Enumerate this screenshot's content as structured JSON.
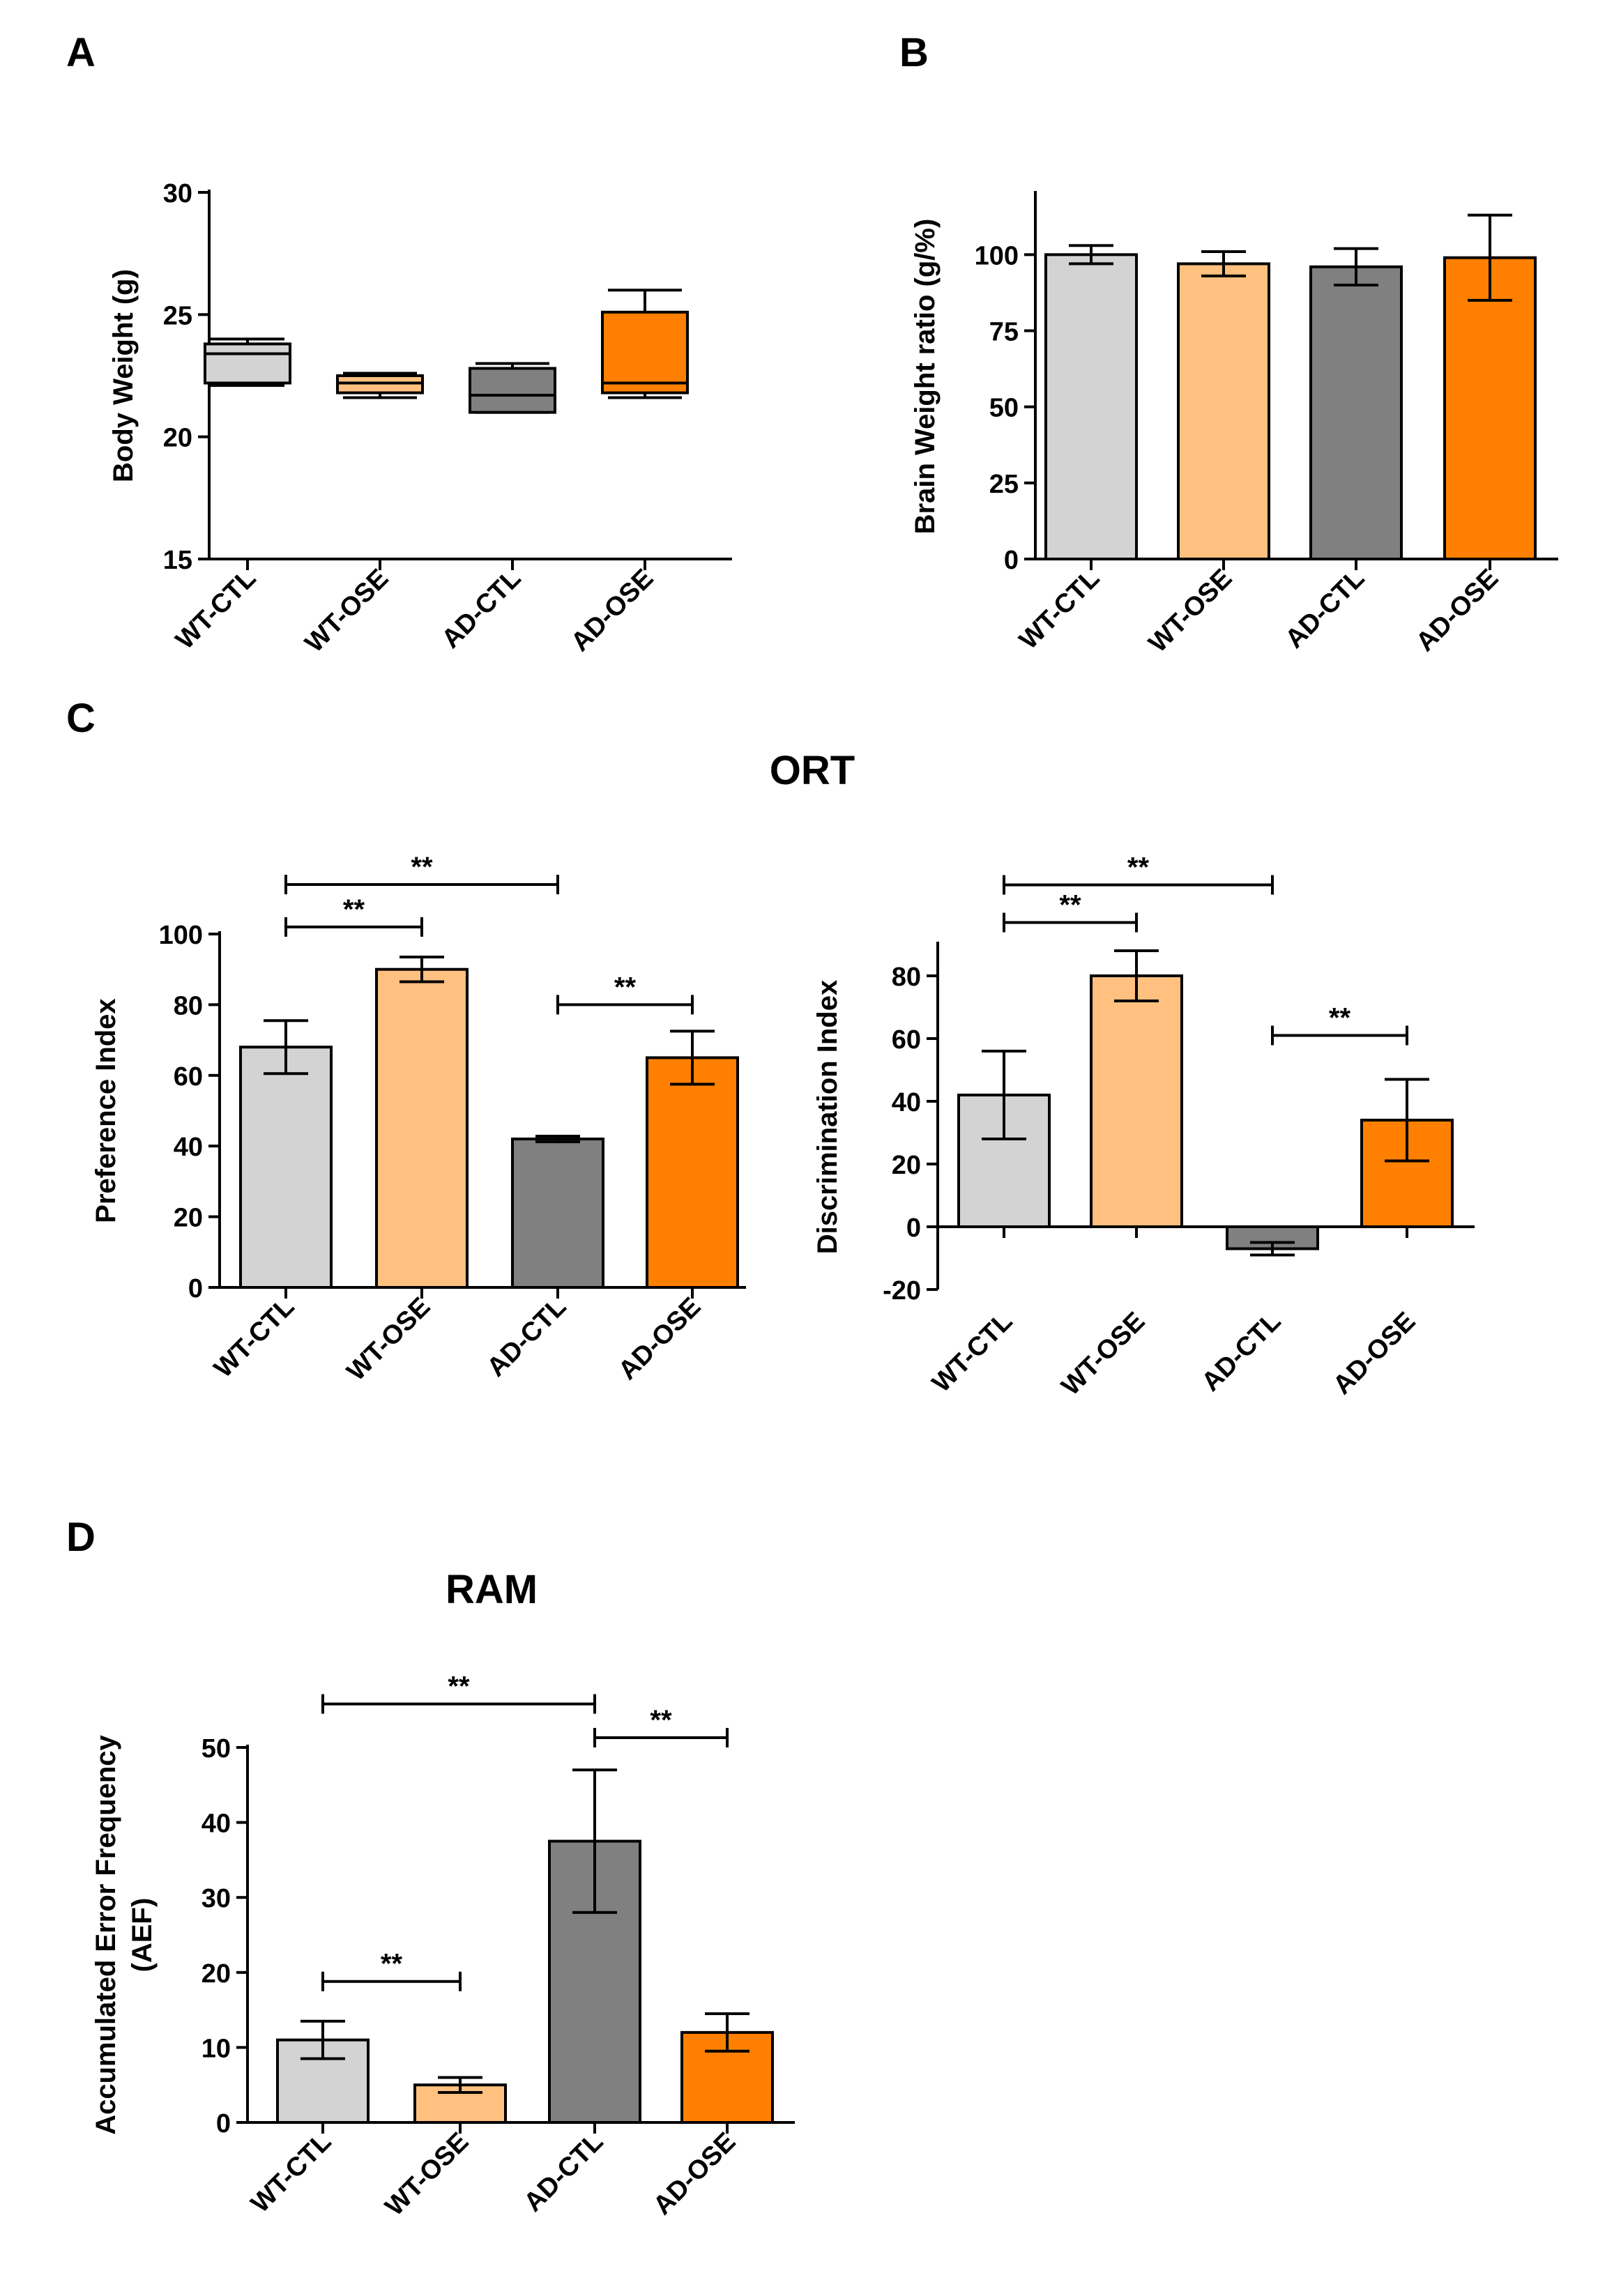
{
  "categories": [
    "WT-CTL",
    "WT-OSE",
    "AD-CTL",
    "AD-OSE"
  ],
  "colors": [
    "#d3d3d3",
    "#ffc080",
    "#808080",
    "#ff8000"
  ],
  "chart_data": [
    {
      "panel": "A",
      "type": "box",
      "title": "",
      "ylabel": "Body Weight (g)",
      "ylim": [
        15,
        30
      ],
      "yticks": [
        15,
        20,
        25,
        30
      ],
      "categories": [
        "WT-CTL",
        "WT-OSE",
        "AD-CTL",
        "AD-OSE"
      ],
      "boxes": [
        {
          "min": 22.1,
          "q1": 22.2,
          "median": 23.4,
          "q3": 23.8,
          "max": 24.0
        },
        {
          "min": 21.6,
          "q1": 21.8,
          "median": 22.2,
          "q3": 22.5,
          "max": 22.6
        },
        {
          "min": 21.0,
          "q1": 21.0,
          "median": 21.7,
          "q3": 22.8,
          "max": 23.0
        },
        {
          "min": 21.6,
          "q1": 21.8,
          "median": 22.2,
          "q3": 25.1,
          "max": 26.0
        }
      ]
    },
    {
      "panel": "B",
      "type": "bar",
      "title": "",
      "ylabel": "Brain Weight ratio (g/%)",
      "ylim": [
        0,
        120
      ],
      "yticks": [
        0,
        25,
        50,
        75,
        100
      ],
      "categories": [
        "WT-CTL",
        "WT-OSE",
        "AD-CTL",
        "AD-OSE"
      ],
      "values": [
        100,
        97,
        96,
        99
      ],
      "errors": [
        3,
        4,
        6,
        14
      ]
    },
    {
      "panel": "C",
      "type": "bar",
      "title": "ORT",
      "ylabel": "Preference Index",
      "ylim": [
        0,
        100
      ],
      "yticks": [
        0,
        20,
        40,
        60,
        80,
        100
      ],
      "categories": [
        "WT-CTL",
        "WT-OSE",
        "AD-CTL",
        "AD-OSE"
      ],
      "values": [
        68,
        90,
        42,
        65
      ],
      "errors": [
        7.5,
        3.5,
        0.8,
        7.5
      ],
      "significance": [
        {
          "from": 0,
          "to": 1,
          "label": "**",
          "y": 102
        },
        {
          "from": 0,
          "to": 2,
          "label": "**",
          "y": 114
        },
        {
          "from": 2,
          "to": 3,
          "label": "**",
          "y": 80
        }
      ]
    },
    {
      "panel": "",
      "type": "bar",
      "title": "",
      "ylabel": "Discrimination Index",
      "ylim": [
        -20,
        90
      ],
      "yticks": [
        -20,
        0,
        20,
        40,
        60,
        80
      ],
      "categories": [
        "WT-CTL",
        "WT-OSE",
        "AD-CTL",
        "AD-OSE"
      ],
      "values": [
        42,
        80,
        -7,
        34
      ],
      "errors": [
        14,
        8,
        2,
        13
      ],
      "significance": [
        {
          "from": 0,
          "to": 1,
          "label": "**",
          "y": 97
        },
        {
          "from": 0,
          "to": 2,
          "label": "**",
          "y": 109
        },
        {
          "from": 2,
          "to": 3,
          "label": "**",
          "y": 61
        }
      ]
    },
    {
      "panel": "D",
      "type": "bar",
      "title": "RAM",
      "ylabel": [
        "Accumulated Error Frequency",
        "(AEF)"
      ],
      "ylim": [
        0,
        50
      ],
      "yticks": [
        0,
        10,
        20,
        30,
        40,
        50
      ],
      "categories": [
        "WT-CTL",
        "WT-OSE",
        "AD-CTL",
        "AD-OSE"
      ],
      "values": [
        11,
        5,
        37.5,
        12
      ],
      "errors": [
        2.5,
        1,
        9.5,
        2.5
      ],
      "significance": [
        {
          "from": 0,
          "to": 1,
          "label": "**",
          "y": 18.8
        },
        {
          "from": 0,
          "to": 2,
          "label": "**",
          "y": 55.8
        },
        {
          "from": 2,
          "to": 3,
          "label": "**",
          "y": 51.3
        }
      ]
    }
  ]
}
